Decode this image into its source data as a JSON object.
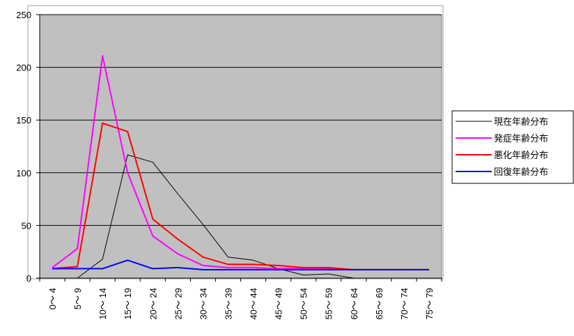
{
  "chart_data": {
    "type": "line",
    "title": "",
    "xlabel": "",
    "ylabel": "",
    "categories": [
      "0～ 4",
      "5～ 9",
      "10～ 14",
      "15～ 19",
      "20～ 24",
      "25～ 29",
      "30～ 34",
      "35～ 39",
      "40～ 44",
      "45～ 49",
      "50～ 54",
      "55～ 59",
      "60～ 64",
      "65～ 69",
      "70～ 74",
      "75～ 79"
    ],
    "ylim": [
      0,
      250
    ],
    "yticks": [
      0,
      50,
      100,
      150,
      200,
      250
    ],
    "grid": true,
    "legend_position": "right",
    "plot_background": "#c0c0c0",
    "series": [
      {
        "name": "現在年齢分布",
        "color": "#000000",
        "width": 1,
        "values": [
          0,
          0,
          18,
          117,
          110,
          80,
          51,
          20,
          17,
          9,
          3,
          4,
          0,
          0,
          0,
          0
        ]
      },
      {
        "name": "発症年齢分布",
        "color": "#ff00ff",
        "width": 2,
        "values": [
          10,
          28,
          211,
          100,
          40,
          23,
          12,
          10,
          10,
          9,
          9,
          9,
          8,
          8,
          8,
          8
        ]
      },
      {
        "name": "悪化年齢分布",
        "color": "#ff0000",
        "width": 2,
        "values": [
          9,
          11,
          147,
          139,
          56,
          37,
          20,
          13,
          13,
          12,
          10,
          10,
          8,
          8,
          8,
          8
        ]
      },
      {
        "name": "回復年齢分布",
        "color": "#0000ff",
        "width": 2,
        "values": [
          9,
          9,
          9,
          17,
          9,
          10,
          8,
          8,
          8,
          8,
          8,
          8,
          8,
          8,
          8,
          8
        ]
      }
    ]
  }
}
